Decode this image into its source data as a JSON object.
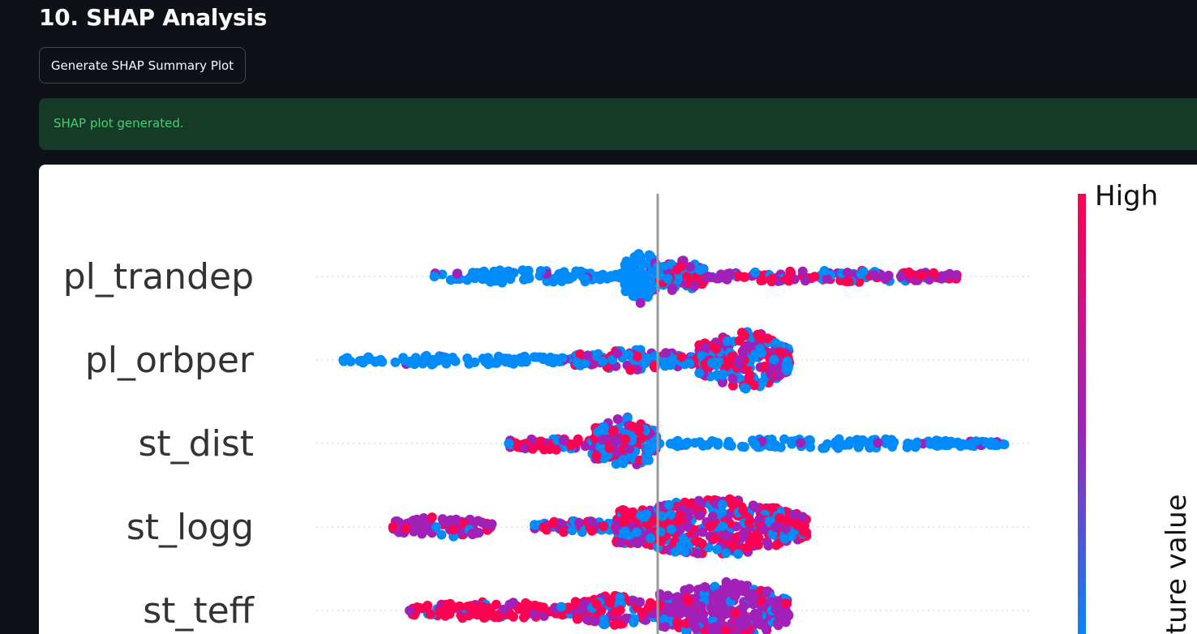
{
  "section": {
    "title": "10. SHAP Analysis"
  },
  "actions": {
    "generate_label": "Generate SHAP Summary Plot"
  },
  "status": {
    "message": "SHAP plot generated.",
    "color": "#3dd56d",
    "background": "#173928"
  },
  "colors": {
    "low": "#008bfb",
    "mid": "#a020b8",
    "high": "#ff0052"
  },
  "chart_data": {
    "type": "scatter",
    "subtype": "shap-beeswarm-summary",
    "features": [
      "pl_trandep",
      "pl_orbper",
      "st_dist",
      "st_logg",
      "st_teff"
    ],
    "colorbar": {
      "high_label": "High",
      "axis_label_visible": "ature value"
    },
    "zero_line": true,
    "rows": [
      {
        "feature": "pl_trandep",
        "min": -0.27,
        "max": 0.37,
        "segments": [
          {
            "from": -0.27,
            "to": -0.04,
            "width": 0.2,
            "color": "low"
          },
          {
            "from": -0.04,
            "to": 0.0,
            "width": 0.8,
            "color": "low"
          },
          {
            "from": 0.0,
            "to": 0.06,
            "width": 0.5,
            "color": "mixed"
          },
          {
            "from": 0.06,
            "to": 0.37,
            "width": 0.18,
            "color": "mid-high"
          }
        ]
      },
      {
        "feature": "pl_orbper",
        "min": -0.38,
        "max": 0.16,
        "segments": [
          {
            "from": -0.38,
            "to": -0.1,
            "width": 0.12,
            "color": "low"
          },
          {
            "from": -0.1,
            "to": 0.05,
            "width": 0.3,
            "color": "low-mixed"
          },
          {
            "from": 0.05,
            "to": 0.16,
            "width": 0.85,
            "color": "mixed"
          }
        ]
      },
      {
        "feature": "st_dist",
        "min": -0.18,
        "max": 0.42,
        "segments": [
          {
            "from": -0.18,
            "to": -0.08,
            "width": 0.2,
            "color": "high"
          },
          {
            "from": -0.08,
            "to": 0.0,
            "width": 0.8,
            "color": "mixed"
          },
          {
            "from": 0.0,
            "to": 0.42,
            "width": 0.14,
            "color": "low"
          }
        ]
      },
      {
        "feature": "st_logg",
        "min": -0.32,
        "max": 0.18,
        "segments": [
          {
            "from": -0.32,
            "to": -0.2,
            "width": 0.3,
            "color": "mid"
          },
          {
            "from": -0.15,
            "to": -0.05,
            "width": 0.2,
            "color": "mixed"
          },
          {
            "from": -0.05,
            "to": 0.18,
            "width": 0.85,
            "color": "mixed-high"
          }
        ]
      },
      {
        "feature": "st_teff",
        "min": -0.3,
        "max": 0.16,
        "segments": [
          {
            "from": -0.3,
            "to": -0.1,
            "width": 0.25,
            "color": "high"
          },
          {
            "from": -0.1,
            "to": 0.0,
            "width": 0.45,
            "color": "mixed-high"
          },
          {
            "from": 0.0,
            "to": 0.16,
            "width": 0.85,
            "color": "mid"
          }
        ]
      }
    ]
  }
}
